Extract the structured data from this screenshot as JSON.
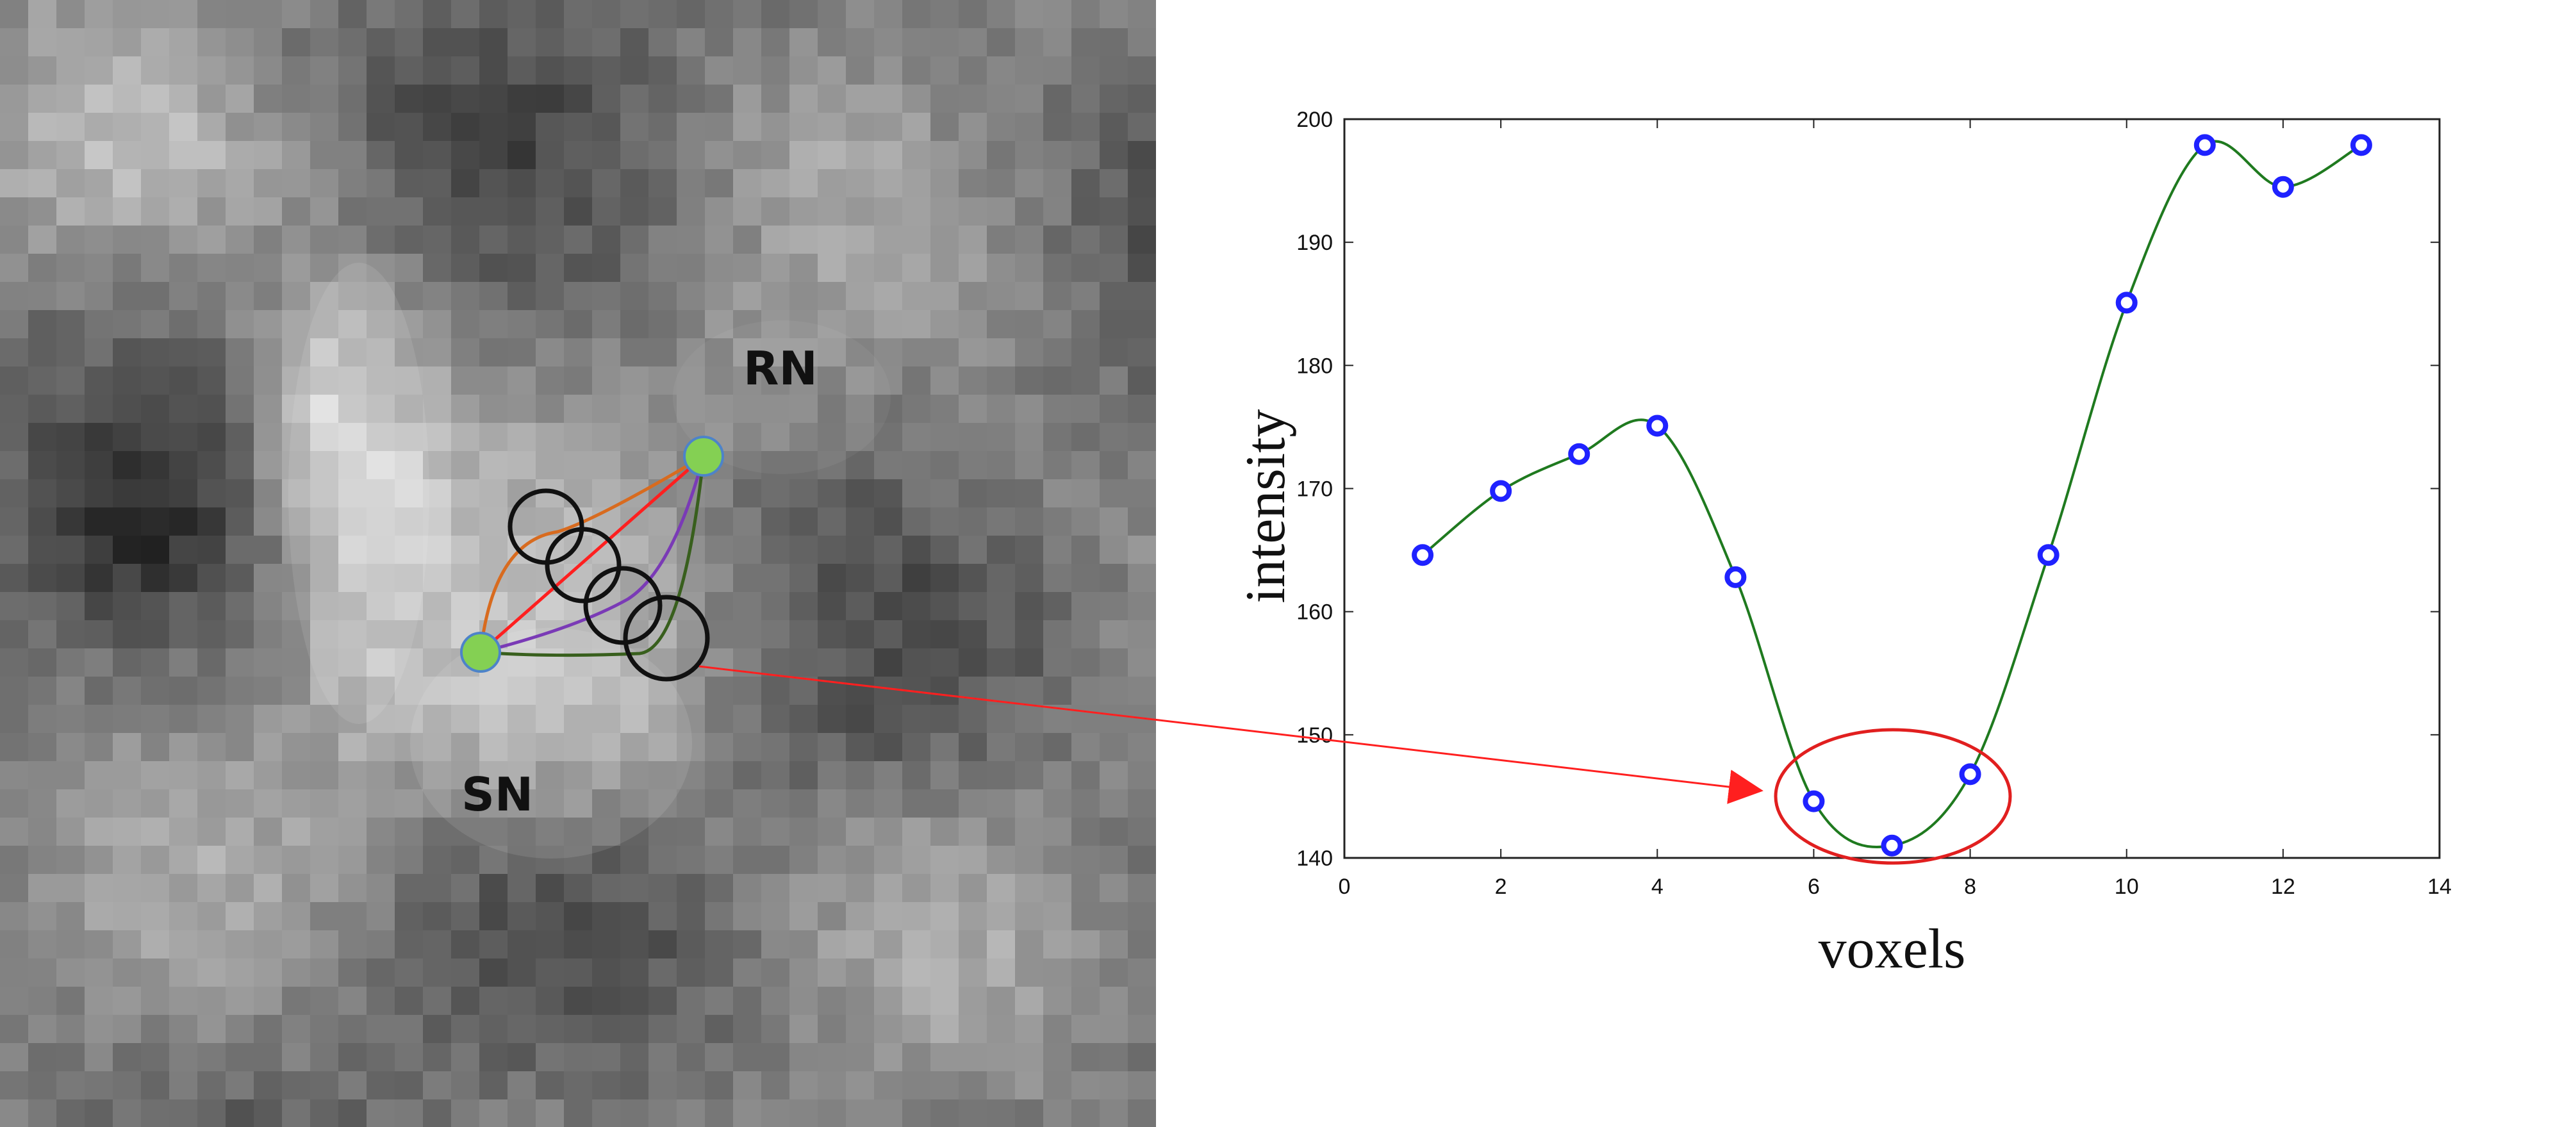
{
  "figure": {
    "left_panel": {
      "labels": {
        "rn": "RN",
        "sn": "SN"
      },
      "colors": {
        "endpoint_fill": "#84d053",
        "endpoint_stroke": "#4d83c9",
        "path_red": "#ff1f1f",
        "path_orange": "#d86b1f",
        "path_purple": "#7a3ab6",
        "path_green": "#385f1d",
        "circle": "#111111"
      }
    },
    "connector": {
      "color": "#ff1f1f"
    },
    "chart": {
      "colors": {
        "axis": "#222222",
        "curve": "#1f7a1f",
        "marker": "#1f22ff",
        "highlight": "#e11f1f"
      }
    }
  },
  "chart_data": {
    "type": "line",
    "x": [
      1,
      2,
      3,
      4,
      5,
      6,
      7,
      8,
      9,
      10,
      11,
      12,
      13
    ],
    "series": [
      {
        "values": [
          164.6,
          169.8,
          172.8,
          175.1,
          162.8,
          144.6,
          141.0,
          146.8,
          164.6,
          185.1,
          197.9,
          194.5,
          197.9
        ]
      }
    ],
    "xlabel": "voxels",
    "ylabel": "intensity",
    "xlim": [
      0,
      14
    ],
    "ylim": [
      140,
      200
    ],
    "xticks": [
      0,
      2,
      4,
      6,
      8,
      10,
      12,
      14
    ],
    "yticks": [
      140,
      150,
      160,
      170,
      180,
      190,
      200
    ],
    "grid": false
  }
}
